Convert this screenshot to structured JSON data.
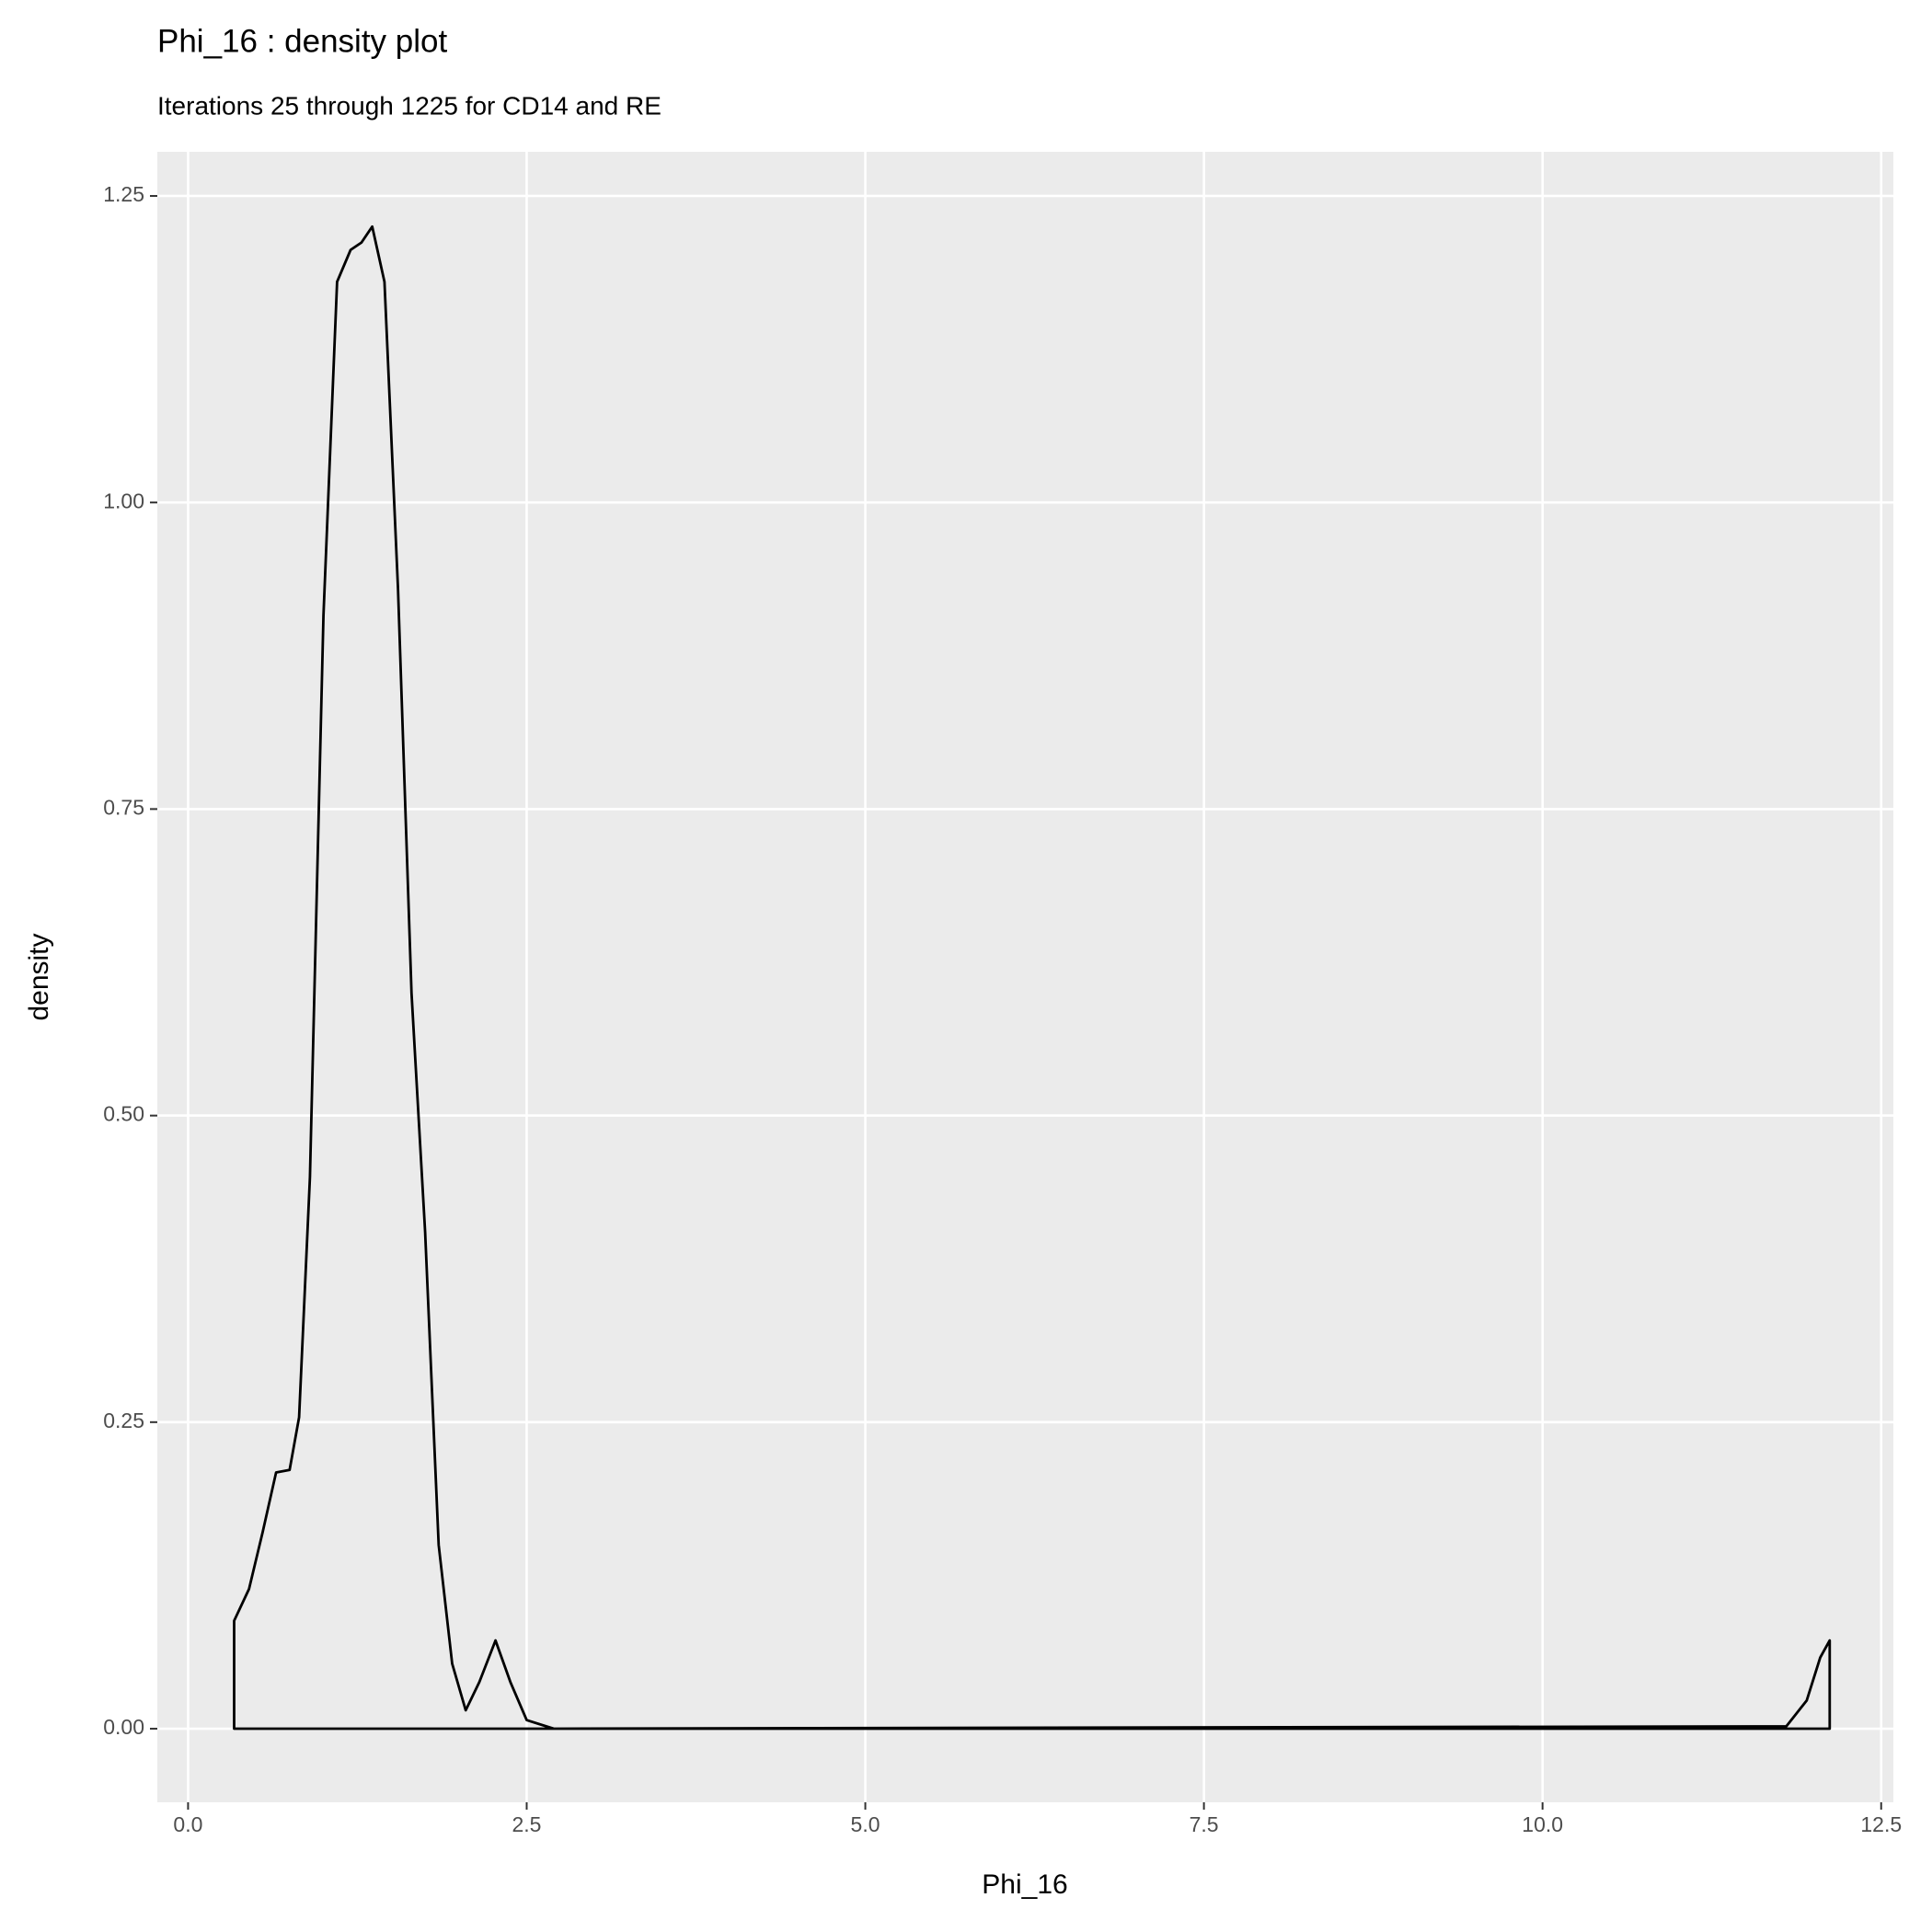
{
  "chart_data": {
    "type": "density",
    "title": "Phi_16 : density plot",
    "subtitle": "Iterations 25 through 1225 for CD14 and RE",
    "x_label": "Phi_16",
    "y_label": "density",
    "color": "#000000",
    "panel_color": "#EBEBEB",
    "grid": true,
    "xlim": [
      -0.227,
      12.59
    ],
    "ylim": [
      -0.06,
      1.286
    ],
    "xticks": [
      {
        "value": 0,
        "label": "0.0"
      },
      2.5,
      {
        "value": 5,
        "label": "5.0"
      },
      7.5,
      {
        "value": 10,
        "label": "10.0"
      },
      12.5
    ],
    "yticks": [
      {
        "value": 0,
        "label": "0.00"
      },
      0.25,
      {
        "value": 0.5,
        "label": "0.50"
      },
      0.75,
      {
        "value": 1,
        "label": "1.00"
      },
      1.25
    ],
    "x": [
      0.34,
      0.34,
      0.45,
      0.55,
      0.65,
      0.75,
      0.82,
      0.9,
      1.0,
      1.1,
      1.2,
      1.28,
      1.36,
      1.45,
      1.55,
      1.65,
      1.75,
      1.85,
      1.95,
      2.05,
      2.15,
      2.27,
      2.38,
      2.5,
      2.7,
      11.8,
      11.95,
      12.05,
      12.12,
      12.12
    ],
    "values": [
      0,
      0.088,
      0.114,
      0.16,
      0.209,
      0.211,
      0.254,
      0.45,
      0.908,
      1.18,
      1.206,
      1.212,
      1.225,
      1.18,
      0.93,
      0.6,
      0.405,
      0.15,
      0.053,
      0.015,
      0.038,
      0.072,
      0.038,
      0.007,
      0,
      0.002,
      0.023,
      0.058,
      0.072,
      0
    ]
  }
}
